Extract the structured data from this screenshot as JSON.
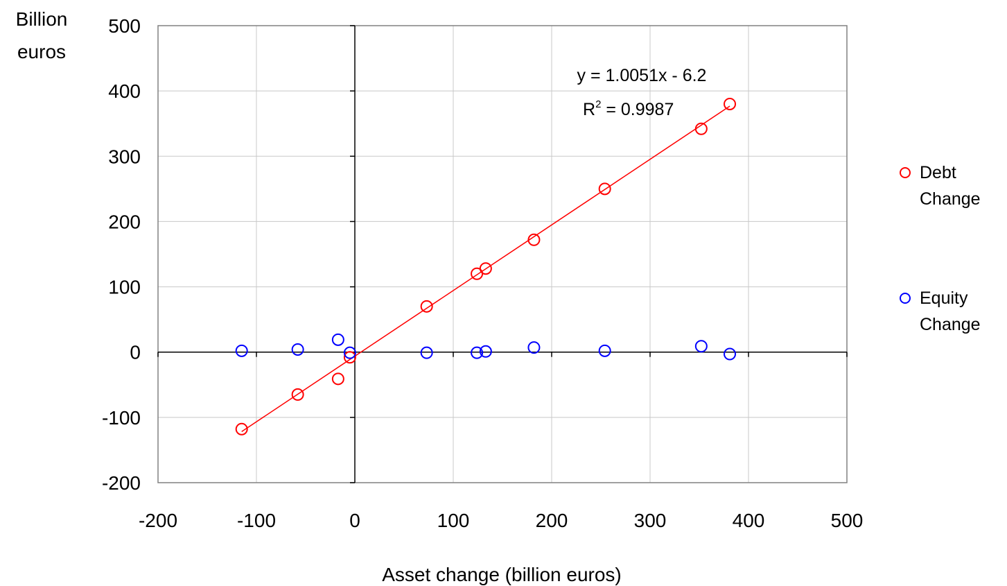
{
  "chart_data": {
    "type": "scatter",
    "title": "",
    "xlabel": "Asset change (billion euros)",
    "ylabel_line1": "Billion",
    "ylabel_line2": "euros",
    "xlim": [
      -200,
      500
    ],
    "ylim": [
      -200,
      500
    ],
    "xticks": [
      -200,
      -100,
      0,
      100,
      200,
      300,
      400,
      500
    ],
    "yticks": [
      -200,
      -100,
      0,
      100,
      200,
      300,
      400,
      500
    ],
    "grid": true,
    "legend_position": "right",
    "series": [
      {
        "name_line1": "Debt",
        "name_line2": "Change",
        "color": "#ff0000",
        "marker": "open-circle",
        "points": [
          {
            "x": -115,
            "y": -118
          },
          {
            "x": -58,
            "y": -65
          },
          {
            "x": -17,
            "y": -41
          },
          {
            "x": -5,
            "y": -8
          },
          {
            "x": 73,
            "y": 70
          },
          {
            "x": 124,
            "y": 120
          },
          {
            "x": 133,
            "y": 128
          },
          {
            "x": 182,
            "y": 172
          },
          {
            "x": 254,
            "y": 250
          },
          {
            "x": 352,
            "y": 342
          },
          {
            "x": 381,
            "y": 380
          }
        ]
      },
      {
        "name_line1": "Equity",
        "name_line2": "Change",
        "color": "#0000ff",
        "marker": "open-circle",
        "points": [
          {
            "x": -115,
            "y": 2
          },
          {
            "x": -58,
            "y": 4
          },
          {
            "x": -17,
            "y": 19
          },
          {
            "x": -5,
            "y": -1
          },
          {
            "x": 73,
            "y": -1
          },
          {
            "x": 124,
            "y": -1
          },
          {
            "x": 133,
            "y": 1
          },
          {
            "x": 182,
            "y": 7
          },
          {
            "x": 254,
            "y": 2
          },
          {
            "x": 352,
            "y": 9
          },
          {
            "x": 381,
            "y": -3
          }
        ]
      }
    ],
    "trendline": {
      "series": "Debt Change",
      "color": "#ff0000",
      "slope": 1.0051,
      "intercept": -6.2,
      "x_range": [
        -115,
        381
      ],
      "equation_label": "y = 1.0051x - 6.2",
      "r2_prefix": "R",
      "r2_sup": "2",
      "r2_value": " = 0.9987"
    }
  }
}
